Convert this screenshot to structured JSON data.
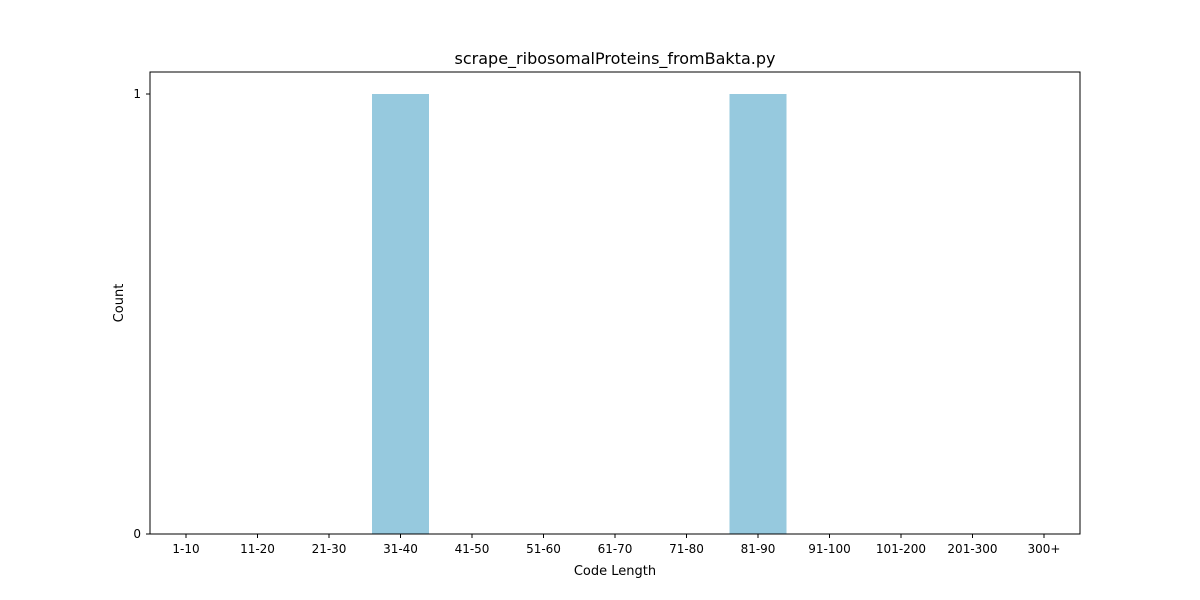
{
  "chart_data": {
    "type": "bar",
    "title": "scrape_ribosomalProteins_fromBakta.py",
    "xlabel": "Code Length",
    "ylabel": "Count",
    "categories": [
      "1-10",
      "11-20",
      "21-30",
      "31-40",
      "41-50",
      "51-60",
      "61-70",
      "71-80",
      "81-90",
      "91-100",
      "101-200",
      "201-300",
      "300+"
    ],
    "values": [
      0,
      0,
      0,
      1,
      0,
      0,
      0,
      0,
      1,
      0,
      0,
      0,
      0
    ],
    "ylim": [
      0,
      1.05
    ],
    "yticks": [
      0,
      1
    ],
    "grid": false,
    "bar_color": "#96c9de"
  }
}
